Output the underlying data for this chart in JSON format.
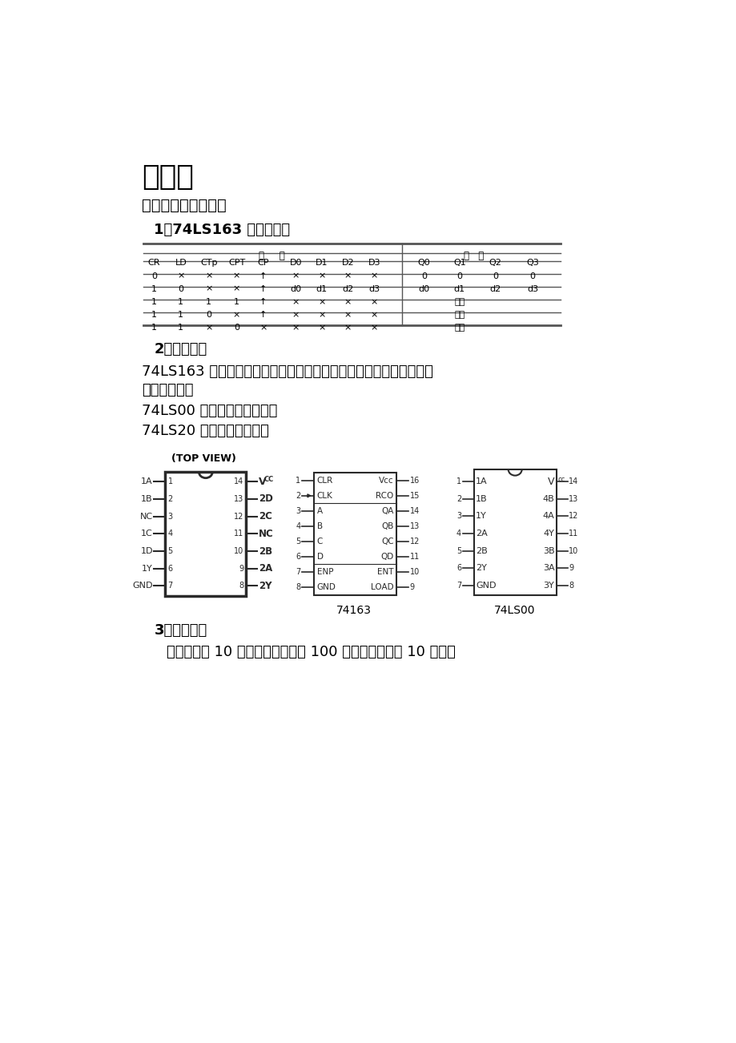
{
  "title": "第二章",
  "section1": "一、电路设计和分析",
  "subsection1": "1、74LS163 逻辑功能表",
  "subsection2": "2、芯片特性",
  "subsection3": "3、设计思路",
  "text1": "74LS163 为二进制四位并行输出的计数器，它有并行装载输入和同步",
  "text2": "清零输入端。",
  "text3": "74LS00 为四二输入与非门。",
  "text4": "74LS20 为四输入与非门。",
  "text5": "用两个模为 10 的计数器构成模为 100 的计数器。模为 10 的计数",
  "table_rows": [
    [
      "0",
      "×",
      "×",
      "×",
      "↑",
      "×",
      "×",
      "×",
      "×",
      "0",
      "0",
      "0",
      "0"
    ],
    [
      "1",
      "0",
      "×",
      "×",
      "↑",
      "d0",
      "d1",
      "d2",
      "d3",
      "d0",
      "d1",
      "d2",
      "d3"
    ],
    [
      "1",
      "1",
      "1",
      "1",
      "↑",
      "×",
      "×",
      "×",
      "×",
      "",
      "计数",
      "",
      ""
    ],
    [
      "1",
      "1",
      "0",
      "×",
      "↑",
      "×",
      "×",
      "×",
      "×",
      "",
      "保持",
      "",
      ""
    ],
    [
      "1",
      "1",
      "×",
      "0",
      "×",
      "×",
      "×",
      "×",
      "×",
      "",
      "保持",
      "",
      ""
    ]
  ],
  "bg_color": "#ffffff",
  "text_color": "#000000",
  "table_line_color": "#555555",
  "ic1_left_labels": [
    "1A",
    "1B",
    "NC",
    "1C",
    "1D",
    "1Y",
    "GND"
  ],
  "ic1_left_nums": [
    "1",
    "2",
    "3",
    "4",
    "5",
    "6",
    "7"
  ],
  "ic1_right_labels": [
    "VCC",
    "2D",
    "2C",
    "NC",
    "2B",
    "2A",
    "2Y"
  ],
  "ic1_right_nums": [
    "14",
    "13",
    "12",
    "11",
    "10",
    "9",
    "8"
  ],
  "ic2_left_labels": [
    "CLR",
    "CLK",
    "A",
    "B",
    "C",
    "D",
    "ENP",
    "GND"
  ],
  "ic2_left_nums": [
    "1",
    "2",
    "3",
    "4",
    "5",
    "6",
    "7",
    "8"
  ],
  "ic2_right_labels": [
    "Vcc",
    "RCO",
    "QA",
    "QB",
    "QC",
    "QD",
    "ENT",
    "LOAD"
  ],
  "ic2_right_nums": [
    "16",
    "15",
    "14",
    "13",
    "12",
    "11",
    "10",
    "9"
  ],
  "ic3_left_labels": [
    "1A",
    "1B",
    "1Y",
    "2A",
    "2B",
    "2Y",
    "GND"
  ],
  "ic3_left_nums": [
    "1",
    "2",
    "3",
    "4",
    "5",
    "6",
    "7"
  ],
  "ic3_right_labels": [
    "VCC",
    "4B",
    "4A",
    "4Y",
    "3B",
    "3A",
    "3Y"
  ],
  "ic3_right_nums": [
    "14",
    "13",
    "12",
    "11",
    "10",
    "9",
    "8"
  ]
}
